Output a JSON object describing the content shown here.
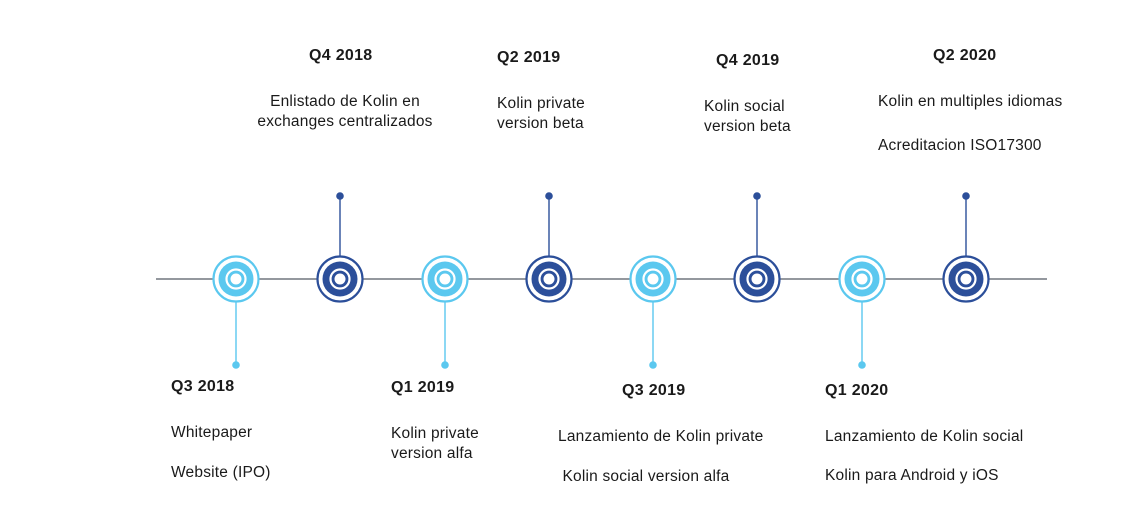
{
  "colors": {
    "light": "#5bc8ef",
    "dark": "#2c4f9a",
    "axis": "#555a64",
    "text": "#1a1a1a"
  },
  "milestones": [
    {
      "id": "q3-2018",
      "quarter": "Q3 2018",
      "position": "below",
      "tone": "light",
      "lines": [
        "Whitepaper",
        "Website (IPO)"
      ]
    },
    {
      "id": "q4-2018",
      "quarter": "Q4 2018",
      "position": "above",
      "tone": "dark",
      "lines": [
        "Enlistado de Kolin  en",
        "exchanges  centralizados"
      ]
    },
    {
      "id": "q1-2019",
      "quarter": "Q1 2019",
      "position": "below",
      "tone": "light",
      "lines": [
        "Kolin private",
        "version alfa"
      ]
    },
    {
      "id": "q2-2019",
      "quarter": "Q2 2019",
      "position": "above",
      "tone": "dark",
      "lines": [
        "Kolin private",
        "version beta"
      ]
    },
    {
      "id": "q3-2019",
      "quarter": "Q3 2019",
      "position": "below",
      "tone": "light",
      "lines": [
        "Lanzamiento de Kolin private",
        " Kolin social version alfa"
      ]
    },
    {
      "id": "q4-2019",
      "quarter": "Q4 2019",
      "position": "above",
      "tone": "dark",
      "lines": [
        "Kolin social",
        "version beta"
      ]
    },
    {
      "id": "q1-2020",
      "quarter": "Q1 2020",
      "position": "below",
      "tone": "light",
      "lines": [
        "Lanzamiento de Kolin social",
        "Kolin para Android y iOS"
      ]
    },
    {
      "id": "q2-2020",
      "quarter": "Q2 2020",
      "position": "above",
      "tone": "dark",
      "lines": [
        "Kolin en multiples idiomas",
        "Acreditacion ISO17300"
      ]
    }
  ]
}
